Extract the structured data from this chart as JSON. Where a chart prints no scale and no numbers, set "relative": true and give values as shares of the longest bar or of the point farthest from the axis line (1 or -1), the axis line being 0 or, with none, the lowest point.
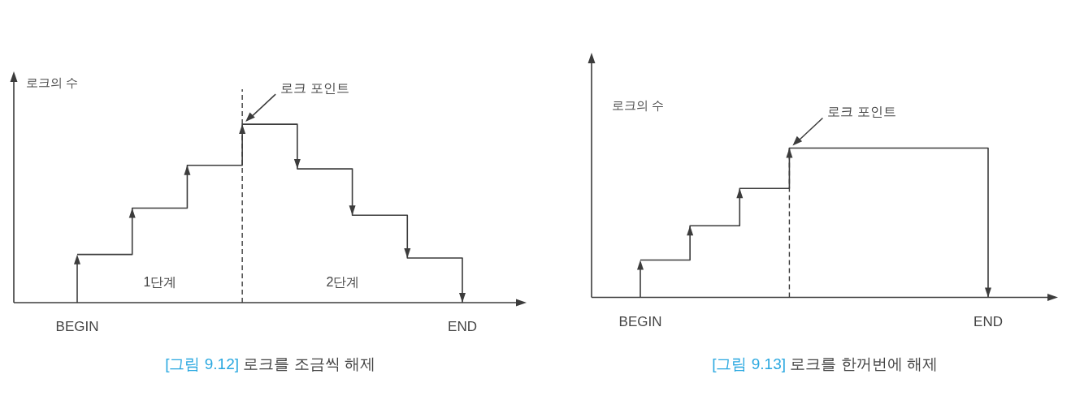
{
  "chart_data": [
    {
      "type": "step",
      "title": "[그림 9.12] 로크를 조금씩 해제",
      "ylabel": "로크의 수",
      "relative": true,
      "categories": [
        "BEGIN",
        null,
        null,
        null,
        null,
        null,
        null,
        "END"
      ],
      "tick_labels": "x",
      "series": [
        {
          "values": [
            0.27,
            0.53,
            0.77,
            1,
            0.75,
            0.49,
            0.25,
            0
          ],
          "color": "#3c3c3c"
        }
      ],
      "annotations": [
        "로크 포인트",
        "1단계",
        "2단계"
      ]
    },
    {
      "type": "step",
      "title": "[그림 9.13] 로크를 한꺼번에 해제",
      "ylabel": "로크의 수",
      "relative": true,
      "categories": [
        "BEGIN",
        null,
        null,
        null,
        null,
        null,
        null,
        "END"
      ],
      "tick_labels": "x",
      "series": [
        {
          "values": [
            0.25,
            0.48,
            0.73,
            1,
            1,
            1,
            1,
            0
          ],
          "color": "#3c3c3c"
        }
      ],
      "annotations": [
        "로크 포인트"
      ]
    }
  ]
}
